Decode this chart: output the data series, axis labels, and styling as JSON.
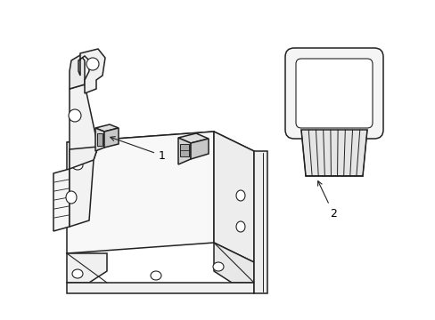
{
  "background_color": "#ffffff",
  "line_color": "#222222",
  "label_color": "#000000",
  "fig_width": 4.89,
  "fig_height": 3.6,
  "dpi": 100,
  "label1_text": "1",
  "label2_text": "2"
}
